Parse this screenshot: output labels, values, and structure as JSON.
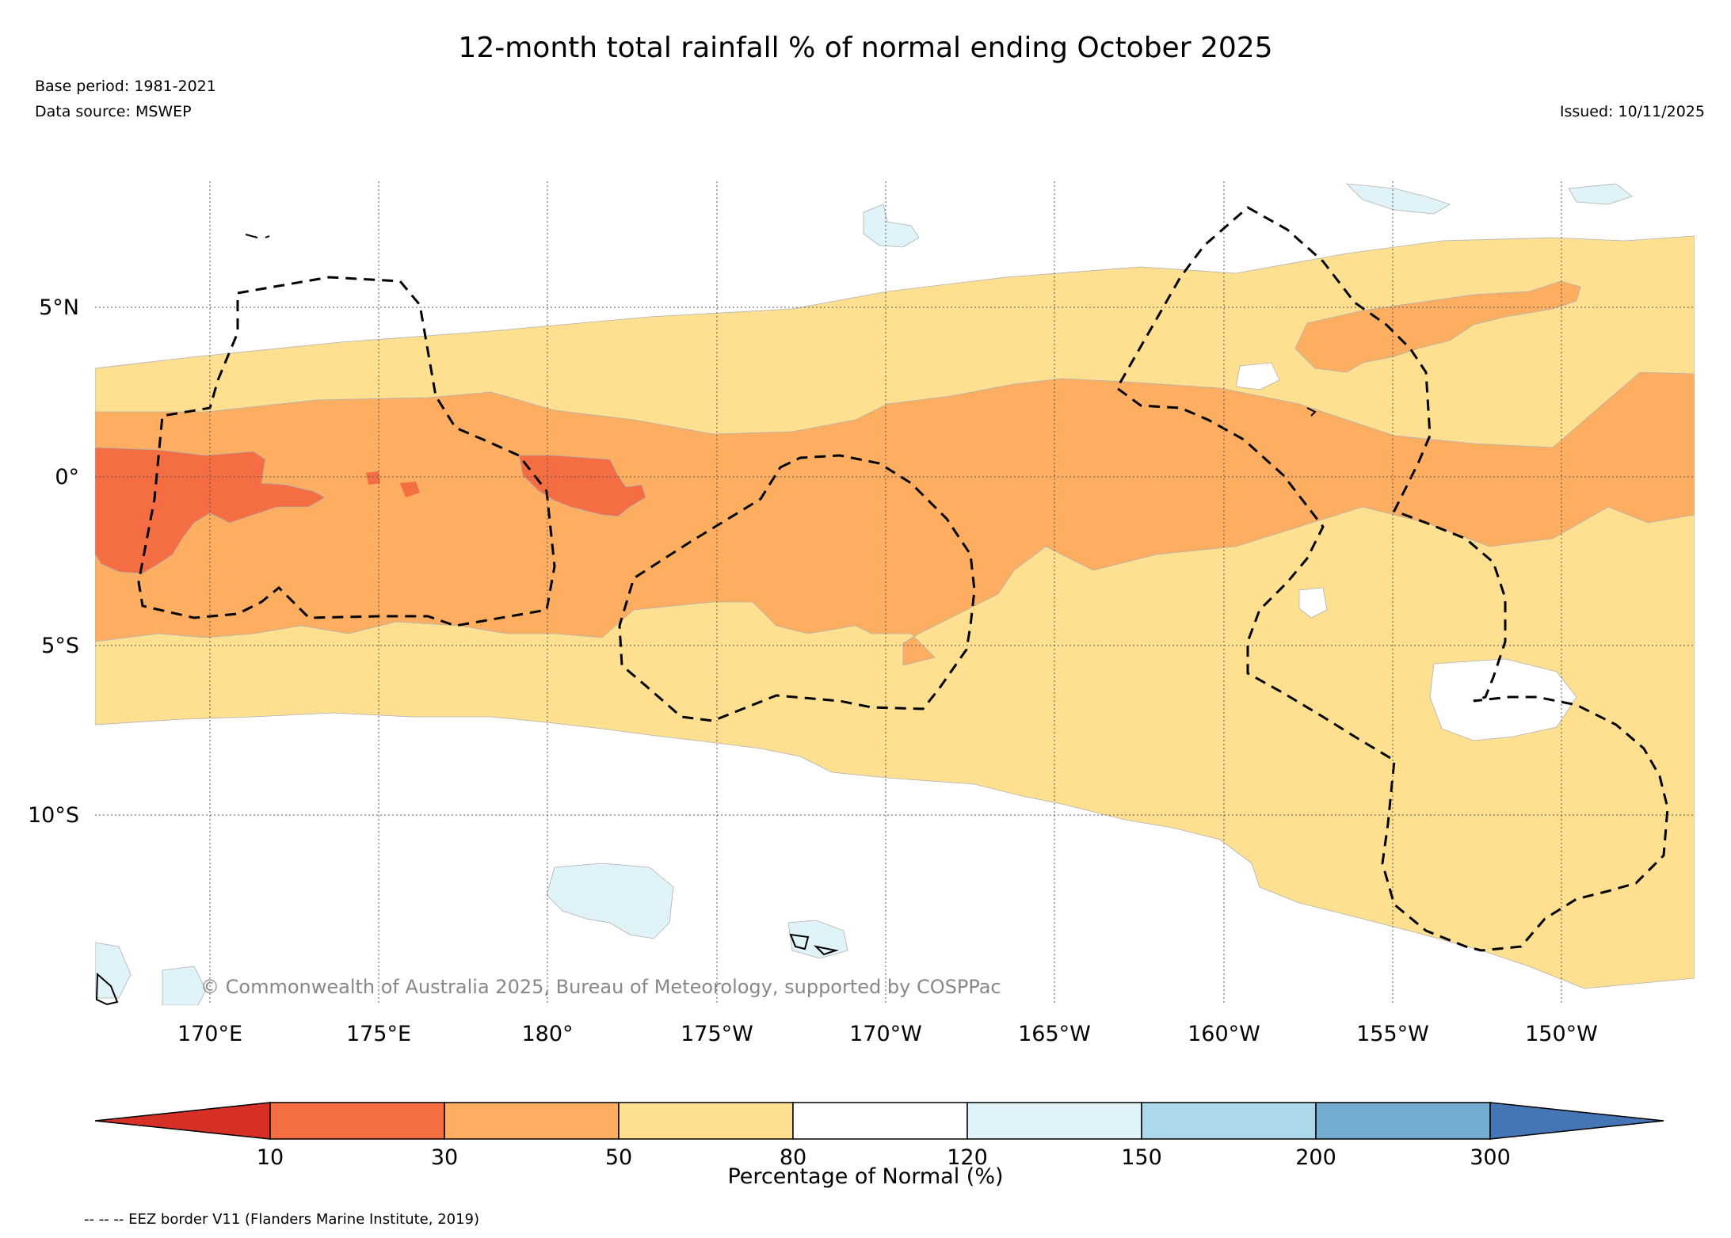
{
  "header": {
    "title": "12-month total rainfall % of normal ending October 2025",
    "base_period": "Base period: 1981-2021",
    "data_source": "Data source: MSWEP",
    "issued": "Issued: 10/11/2025"
  },
  "map": {
    "lat_labels": [
      "5°N",
      "0°",
      "5°S",
      "10°S"
    ],
    "lon_labels": [
      "170°E",
      "175°E",
      "180°",
      "175°W",
      "170°W",
      "165°W",
      "160°W",
      "155°W",
      "150°W"
    ],
    "credit": "© Commonwealth of Australia 2025, Bureau of Meteorology, supported by COSPPac",
    "category_colors": {
      "below_10": "#d73027",
      "10_30": "#f46d43",
      "30_50": "#fdae61",
      "50_80": "#fee090",
      "80_120": "#ffffff",
      "120_150": "#e0f3f8",
      "150_200": "#abd9e9",
      "200_300": "#74add1",
      "above_300": "#4575b4"
    }
  },
  "colorbar": {
    "ticks": [
      "10",
      "30",
      "50",
      "80",
      "120",
      "150",
      "200",
      "300"
    ],
    "label": "Percentage of Normal (%)",
    "colors": [
      "#d73027",
      "#f46d43",
      "#fdae61",
      "#fee090",
      "#ffffff",
      "#e0f3f8",
      "#abd9e9",
      "#74add1",
      "#4575b4"
    ]
  },
  "legend": {
    "eez": "-- -- -- EEZ border V11 (Flanders Marine Institute, 2019)"
  }
}
